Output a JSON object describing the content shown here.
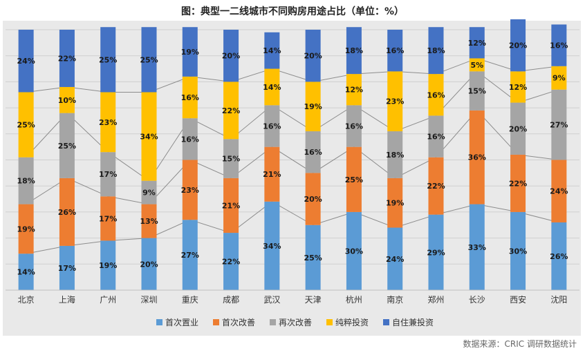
{
  "title": "图：典型一二线城市不同购房用途占比（单位：%）",
  "source": "数据来源：CRIC 调研数据统计",
  "chart_data": {
    "type": "bar",
    "stacked": true,
    "categories": [
      "北京",
      "上海",
      "广州",
      "深圳",
      "重庆",
      "成都",
      "武汉",
      "天津",
      "杭州",
      "南京",
      "郑州",
      "长沙",
      "西安",
      "沈阳"
    ],
    "series": [
      {
        "name": "首次置业",
        "color": "#5b9bd5",
        "values": [
          14,
          17,
          19,
          20,
          27,
          22,
          34,
          25,
          30,
          24,
          29,
          33,
          30,
          26
        ]
      },
      {
        "name": "首次改善",
        "color": "#ed7d31",
        "values": [
          19,
          26,
          17,
          13,
          23,
          21,
          21,
          20,
          25,
          19,
          22,
          36,
          22,
          24
        ]
      },
      {
        "name": "再次改善",
        "color": "#a5a5a5",
        "values": [
          18,
          25,
          17,
          9,
          16,
          15,
          16,
          16,
          16,
          18,
          16,
          15,
          20,
          27
        ]
      },
      {
        "name": "纯粹投资",
        "color": "#ffc000",
        "values": [
          25,
          10,
          23,
          34,
          16,
          22,
          14,
          19,
          12,
          23,
          16,
          5,
          12,
          9
        ]
      },
      {
        "name": "自住兼投资",
        "color": "#4472c4",
        "values": [
          24,
          22,
          25,
          25,
          19,
          20,
          14,
          20,
          18,
          16,
          18,
          12,
          20,
          16
        ]
      }
    ],
    "label_suffix": "%",
    "ylim": [
      0,
      100
    ],
    "grid": true,
    "legend": "bottom"
  }
}
